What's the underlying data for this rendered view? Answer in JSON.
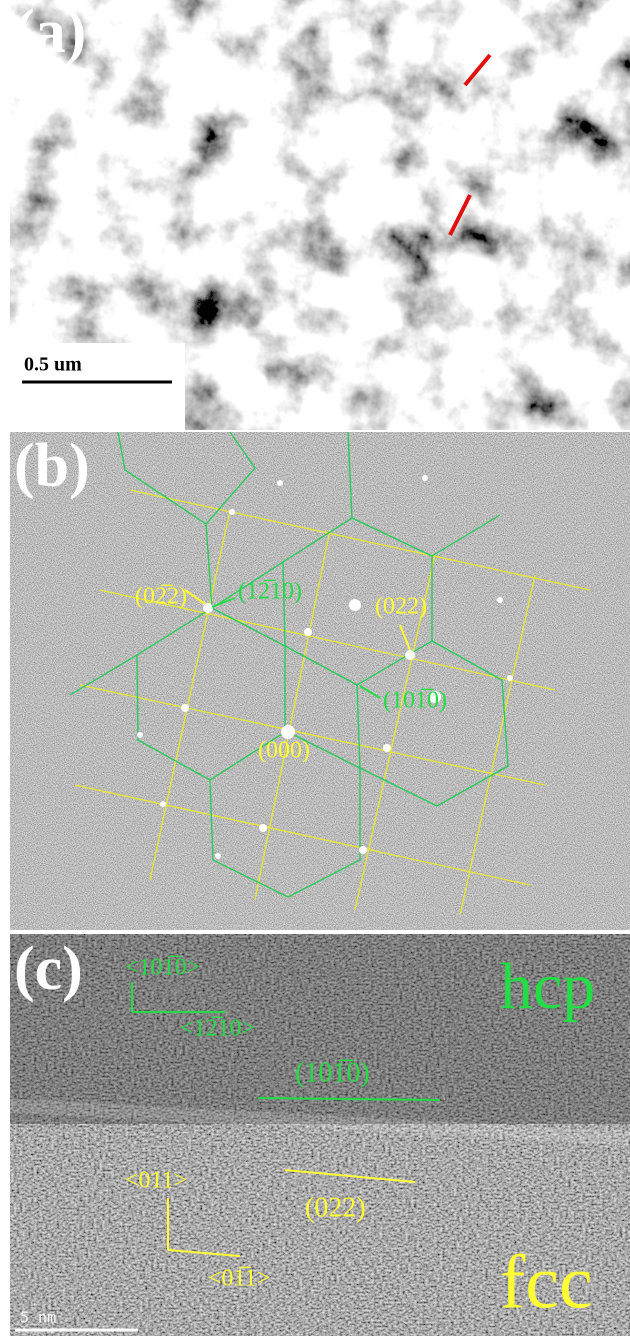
{
  "panels": [
    {
      "label": "(a)",
      "scale_bar": "0.5 um"
    },
    {
      "label": "(b)",
      "annotations": [
        "(02̅2)",
        "(12̅10)",
        "(022)",
        "(101̅0)",
        "(000)"
      ]
    },
    {
      "label": "(c)",
      "scale_bar": "5 nm",
      "annotations": [
        "<101̅0>",
        "<12̅10>",
        "(101̅0)",
        "hcp",
        "<011>",
        "(022)",
        "<01̅1>",
        "fcc"
      ]
    }
  ]
}
